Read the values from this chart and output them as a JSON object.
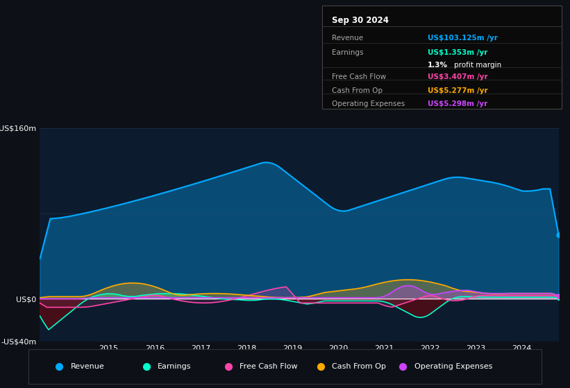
{
  "background_color": "#0d1117",
  "plot_bg_color": "#0d1b2e",
  "title": "Sep 30 2024",
  "ylim": [
    -40,
    160
  ],
  "revenue_color": "#00aaff",
  "earnings_color": "#00ffcc",
  "fcf_color": "#ff44aa",
  "cashfromop_color": "#ffaa00",
  "opex_color": "#cc44ff",
  "legend_items": [
    "Revenue",
    "Earnings",
    "Free Cash Flow",
    "Cash From Op",
    "Operating Expenses"
  ],
  "info_box": {
    "date": "Sep 30 2024",
    "revenue": "US$103.125m /yr",
    "earnings": "US$1.353m /yr",
    "profit_margin": "1.3% profit margin",
    "fcf": "US$3.407m /yr",
    "cash_from_op": "US$5.277m /yr",
    "op_expenses": "US$5.298m /yr"
  }
}
